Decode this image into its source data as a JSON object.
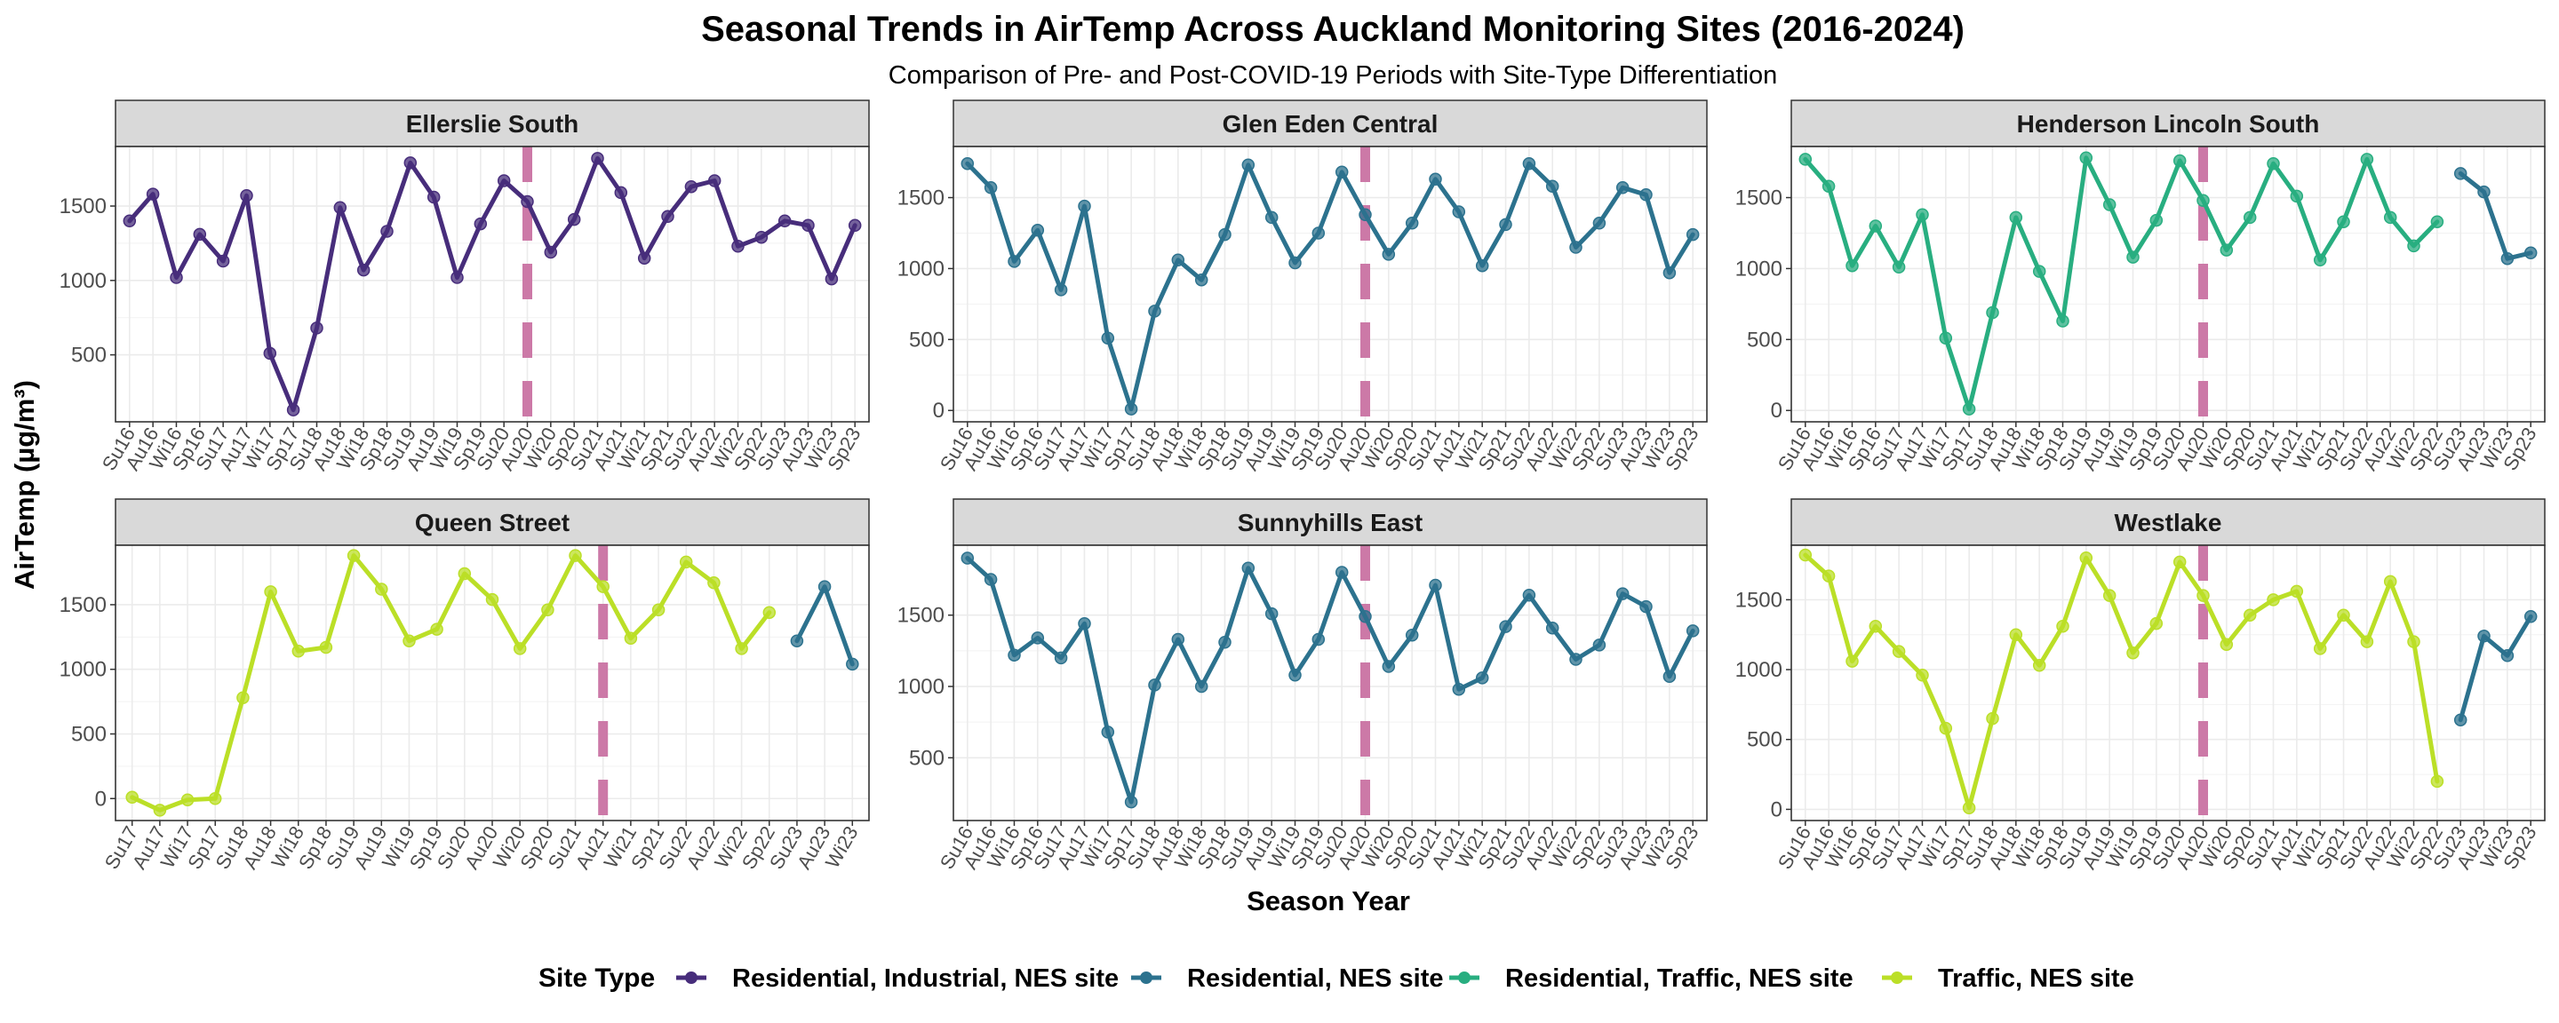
{
  "chart_data": {
    "type": "line",
    "title": "Seasonal Trends in  AirTemp  Across Auckland Monitoring Sites (2016-2024)",
    "subtitle": "Comparison of Pre- and Post-COVID-19 Periods with Site-Type Differentiation",
    "xlabel": "Season Year",
    "ylabel": "AirTemp (µg/m³)",
    "legend": {
      "title": "Site Type",
      "placement": "bottom",
      "items": [
        {
          "label": "Residential, Industrial, NES site",
          "color": "#472D7B"
        },
        {
          "label": "Residential, NES site",
          "color": "#2C728E"
        },
        {
          "label": "Residential, Traffic, NES site",
          "color": "#28AE80"
        },
        {
          "label": "Traffic, NES site",
          "color": "#BBDF27"
        }
      ]
    },
    "covid_line_color": "#CC79A7",
    "grid": true,
    "panels": [
      {
        "title": "Ellerslie South",
        "ylim": [
          50,
          1900
        ],
        "yticks": [
          500,
          1000,
          1500
        ],
        "covid_category": "Au20",
        "categories": [
          "Su16",
          "Au16",
          "Wi16",
          "Sp16",
          "Su17",
          "Au17",
          "Wi17",
          "Sp17",
          "Su18",
          "Au18",
          "Wi18",
          "Sp18",
          "Su19",
          "Au19",
          "Wi19",
          "Sp19",
          "Su20",
          "Au20",
          "Wi20",
          "Sp20",
          "Su21",
          "Au21",
          "Wi21",
          "Sp21",
          "Su22",
          "Au22",
          "Wi22",
          "Sp22",
          "Su23",
          "Au23",
          "Wi23",
          "Sp23"
        ],
        "series": [
          {
            "site_type": "Residential, Industrial, NES site",
            "start": 0,
            "values": [
              1400,
              1580,
              1020,
              1310,
              1130,
              1570,
              510,
              130,
              680,
              1490,
              1070,
              1330,
              1790,
              1560,
              1020,
              1380,
              1670,
              1530,
              1190,
              1410,
              1820,
              1590,
              1150,
              1430,
              1630,
              1670,
              1230,
              1290,
              1400,
              1370,
              1010,
              1370
            ]
          }
        ]
      },
      {
        "title": "Glen Eden Central",
        "ylim": [
          -80,
          1860
        ],
        "yticks": [
          0,
          500,
          1000,
          1500
        ],
        "covid_category": "Au20",
        "categories": [
          "Su16",
          "Au16",
          "Wi16",
          "Sp16",
          "Su17",
          "Au17",
          "Wi17",
          "Sp17",
          "Su18",
          "Au18",
          "Wi18",
          "Sp18",
          "Su19",
          "Au19",
          "Wi19",
          "Sp19",
          "Su20",
          "Au20",
          "Wi20",
          "Sp20",
          "Su21",
          "Au21",
          "Wi21",
          "Sp21",
          "Su22",
          "Au22",
          "Wi22",
          "Sp22",
          "Su23",
          "Au23",
          "Wi23",
          "Sp23"
        ],
        "series": [
          {
            "site_type": "Residential, NES site",
            "start": 0,
            "values": [
              1740,
              1570,
              1050,
              1270,
              850,
              1440,
              510,
              10,
              700,
              1060,
              920,
              1240,
              1730,
              1360,
              1040,
              1250,
              1680,
              1380,
              1100,
              1320,
              1630,
              1400,
              1020,
              1310,
              1740,
              1580,
              1150,
              1320,
              1570,
              1520,
              970,
              1240
            ]
          }
        ]
      },
      {
        "title": "Henderson Lincoln South",
        "ylim": [
          -80,
          1860
        ],
        "yticks": [
          0,
          500,
          1000,
          1500
        ],
        "covid_category": "Au20",
        "categories": [
          "Su16",
          "Au16",
          "Wi16",
          "Sp16",
          "Su17",
          "Au17",
          "Wi17",
          "Sp17",
          "Su18",
          "Au18",
          "Wi18",
          "Sp18",
          "Su19",
          "Au19",
          "Wi19",
          "Sp19",
          "Su20",
          "Au20",
          "Wi20",
          "Sp20",
          "Su21",
          "Au21",
          "Wi21",
          "Sp21",
          "Su22",
          "Au22",
          "Wi22",
          "Sp22",
          "Su23",
          "Au23",
          "Wi23",
          "Sp23"
        ],
        "series": [
          {
            "site_type": "Residential, Traffic, NES site",
            "start": 0,
            "values": [
              1770,
              1580,
              1020,
              1300,
              1010,
              1380,
              510,
              10,
              690,
              1360,
              980,
              630,
              1780,
              1450,
              1080,
              1340,
              1760,
              1480,
              1130,
              1360,
              1740,
              1510,
              1060,
              1330,
              1770,
              1360,
              1160,
              1330
            ]
          },
          {
            "site_type": "Residential, NES site",
            "start": 28,
            "values": [
              1670,
              1540,
              1070,
              1110
            ]
          }
        ]
      },
      {
        "title": "Queen Street",
        "ylim": [
          -170,
          1960
        ],
        "yticks": [
          0,
          500,
          1000,
          1500
        ],
        "covid_category": "Au21",
        "categories": [
          "Su17",
          "Au17",
          "Wi17",
          "Sp17",
          "Su18",
          "Au18",
          "Wi18",
          "Sp18",
          "Su19",
          "Au19",
          "Wi19",
          "Sp19",
          "Su20",
          "Au20",
          "Wi20",
          "Sp20",
          "Su21",
          "Au21",
          "Wi21",
          "Sp21",
          "Su22",
          "Au22",
          "Wi22",
          "Sp22",
          "Su23",
          "Au23",
          "Wi23"
        ],
        "series": [
          {
            "site_type": "Traffic, NES site",
            "start": 0,
            "values": [
              10,
              -90,
              -10,
              0,
              780,
              1600,
              1140,
              1170,
              1880,
              1620,
              1220,
              1310,
              1740,
              1540,
              1160,
              1460,
              1880,
              1640,
              1240,
              1460,
              1830,
              1670,
              1160,
              1440
            ]
          },
          {
            "site_type": "Residential, NES site",
            "start": 24,
            "values": [
              1220,
              1640,
              1040
            ]
          }
        ]
      },
      {
        "title": "Sunnyhills East",
        "ylim": [
          60,
          1990
        ],
        "yticks": [
          500,
          1000,
          1500
        ],
        "covid_category": "Au20",
        "categories": [
          "Su16",
          "Au16",
          "Wi16",
          "Sp16",
          "Su17",
          "Au17",
          "Wi17",
          "Sp17",
          "Su18",
          "Au18",
          "Wi18",
          "Sp18",
          "Su19",
          "Au19",
          "Wi19",
          "Sp19",
          "Su20",
          "Au20",
          "Wi20",
          "Sp20",
          "Su21",
          "Au21",
          "Wi21",
          "Sp21",
          "Su22",
          "Au22",
          "Wi22",
          "Sp22",
          "Su23",
          "Au23",
          "Wi23",
          "Sp23"
        ],
        "series": [
          {
            "site_type": "Residential, NES site",
            "start": 0,
            "values": [
              1900,
              1750,
              1220,
              1340,
              1200,
              1440,
              680,
              190,
              1010,
              1330,
              1000,
              1310,
              1830,
              1510,
              1080,
              1330,
              1800,
              1490,
              1140,
              1360,
              1710,
              980,
              1060,
              1420,
              1640,
              1410,
              1190,
              1290,
              1650,
              1560,
              1070,
              1390
            ]
          }
        ]
      },
      {
        "title": "Westlake",
        "ylim": [
          -80,
          1890
        ],
        "yticks": [
          0,
          500,
          1000,
          1500
        ],
        "covid_category": "Au20",
        "categories": [
          "Su16",
          "Au16",
          "Wi16",
          "Sp16",
          "Su17",
          "Au17",
          "Wi17",
          "Sp17",
          "Su18",
          "Au18",
          "Wi18",
          "Sp18",
          "Su19",
          "Au19",
          "Wi19",
          "Sp19",
          "Su20",
          "Au20",
          "Wi20",
          "Sp20",
          "Su21",
          "Au21",
          "Wi21",
          "Sp21",
          "Su22",
          "Au22",
          "Wi22",
          "Sp22",
          "Su23",
          "Au23",
          "Wi23",
          "Sp23"
        ],
        "series": [
          {
            "site_type": "Traffic, NES site",
            "start": 0,
            "values": [
              1820,
              1670,
              1060,
              1310,
              1130,
              960,
              580,
              10,
              650,
              1250,
              1030,
              1310,
              1800,
              1530,
              1120,
              1330,
              1770,
              1530,
              1180,
              1390,
              1500,
              1560,
              1150,
              1390,
              1200,
              1630,
              1200,
              200
            ]
          },
          {
            "site_type": "Residential, NES site",
            "start": 28,
            "values": [
              640,
              1240,
              1100,
              1380
            ]
          }
        ]
      }
    ]
  }
}
